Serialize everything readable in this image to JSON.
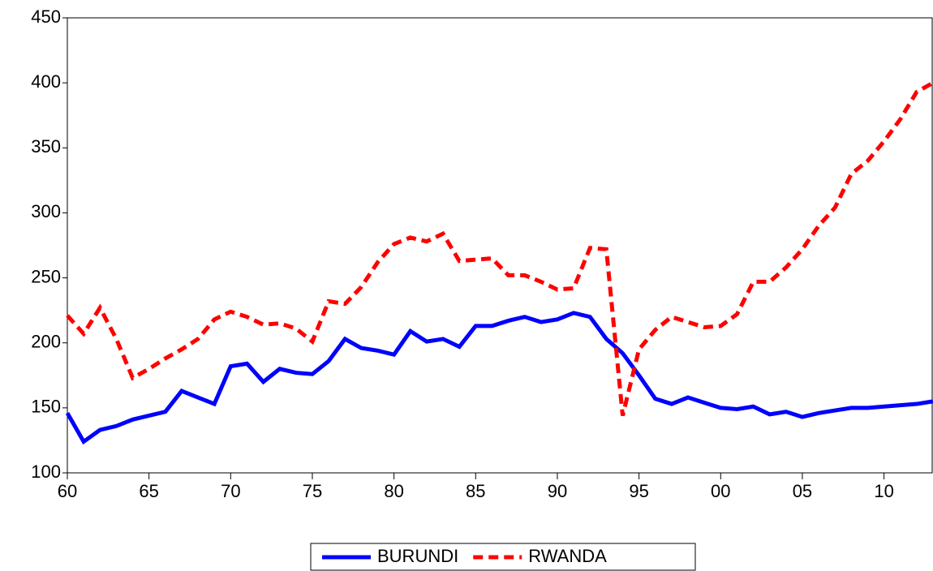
{
  "chart_data": {
    "type": "line",
    "x": [
      1960,
      1961,
      1962,
      1963,
      1964,
      1965,
      1966,
      1967,
      1968,
      1969,
      1970,
      1971,
      1972,
      1973,
      1974,
      1975,
      1976,
      1977,
      1978,
      1979,
      1980,
      1981,
      1982,
      1983,
      1984,
      1985,
      1986,
      1987,
      1988,
      1989,
      1990,
      1991,
      1992,
      1993,
      1994,
      1995,
      1996,
      1997,
      1998,
      1999,
      2000,
      2001,
      2002,
      2003,
      2004,
      2005,
      2006,
      2007,
      2008,
      2009,
      2010,
      2011,
      2012,
      2013
    ],
    "series": [
      {
        "name": "BURUNDI",
        "color": "#0000ff",
        "dash": false,
        "values": [
          146,
          124,
          133,
          136,
          141,
          144,
          147,
          163,
          158,
          153,
          182,
          184,
          170,
          180,
          177,
          176,
          186,
          203,
          196,
          194,
          191,
          209,
          201,
          203,
          197,
          213,
          213,
          217,
          220,
          216,
          218,
          223,
          220,
          203,
          192,
          175,
          157,
          153,
          158,
          154,
          150,
          149,
          151,
          145,
          147,
          143,
          146,
          148,
          150,
          150,
          151,
          152,
          153,
          155
        ]
      },
      {
        "name": "RWANDA",
        "color": "#ff0000",
        "dash": true,
        "values": [
          221,
          207,
          227,
          203,
          173,
          180,
          188,
          195,
          203,
          218,
          224,
          220,
          214,
          215,
          211,
          201,
          232,
          230,
          243,
          262,
          276,
          281,
          278,
          284,
          263,
          264,
          265,
          252,
          252,
          247,
          241,
          242,
          273,
          272,
          144,
          195,
          210,
          220,
          216,
          212,
          213,
          222,
          247,
          247,
          258,
          272,
          290,
          304,
          330,
          340,
          355,
          372,
          393,
          400
        ]
      }
    ],
    "xlim": [
      1960,
      2013
    ],
    "xticks": [
      {
        "value": 1960,
        "label": "60"
      },
      {
        "value": 1965,
        "label": "65"
      },
      {
        "value": 1970,
        "label": "70"
      },
      {
        "value": 1975,
        "label": "75"
      },
      {
        "value": 1980,
        "label": "80"
      },
      {
        "value": 1985,
        "label": "85"
      },
      {
        "value": 1990,
        "label": "90"
      },
      {
        "value": 1995,
        "label": "95"
      },
      {
        "value": 2000,
        "label": "00"
      },
      {
        "value": 2005,
        "label": "05"
      },
      {
        "value": 2010,
        "label": "10"
      }
    ],
    "ylim": [
      100,
      450
    ],
    "yticks": [
      100,
      150,
      200,
      250,
      300,
      350,
      400,
      450
    ],
    "legend": "bottom"
  }
}
